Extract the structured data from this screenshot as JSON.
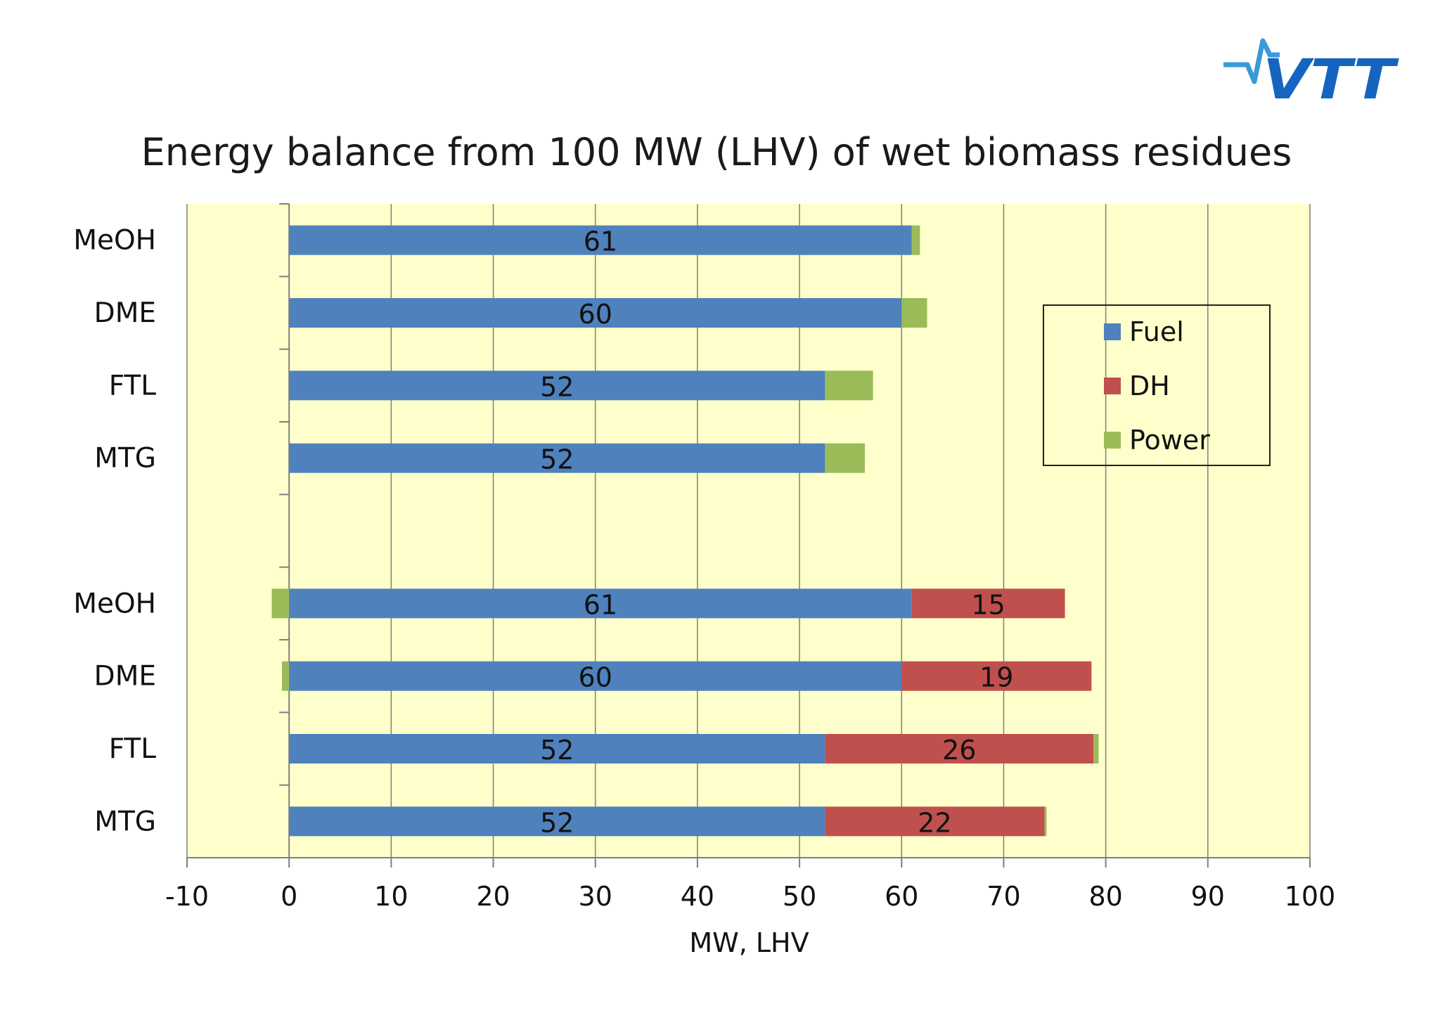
{
  "logo": {
    "text": "VTT",
    "color": "#1565c0"
  },
  "chart_data": {
    "type": "bar",
    "orientation": "horizontal",
    "stacked": true,
    "title": "Energy balance from 100 MW (LHV) of wet biomass residues",
    "xlabel": "MW, LHV",
    "ylabel": "",
    "xlim": [
      -10,
      100
    ],
    "xticks": [
      "-10",
      "0",
      "10",
      "20",
      "30",
      "40",
      "50",
      "60",
      "70",
      "80",
      "90",
      "100"
    ],
    "grid": true,
    "legend_position": "right",
    "plot_background": "#ffffcc",
    "categories": [
      "MeOH",
      "DME",
      "FTL",
      "MTG",
      "",
      "MeOH",
      "DME",
      "FTL",
      "MTG"
    ],
    "series": [
      {
        "name": "Fuel",
        "color": "#4f81bd",
        "values": [
          61,
          60,
          52.5,
          52.5,
          null,
          61,
          60,
          52.5,
          52.5
        ],
        "labels": [
          "61",
          "60",
          "52",
          "52",
          "",
          "61",
          "60",
          "52",
          "52"
        ]
      },
      {
        "name": "DH",
        "color": "#c0504d",
        "values": [
          0,
          0,
          0,
          0,
          null,
          15,
          18.6,
          26.3,
          21.5
        ],
        "labels": [
          "",
          "",
          "",
          "",
          "",
          "15",
          "19",
          "26",
          "22"
        ]
      },
      {
        "name": "Power",
        "color": "#9bbb59",
        "values": [
          0.8,
          2.5,
          4.7,
          3.9,
          null,
          -1.7,
          -0.7,
          0.5,
          0.2
        ],
        "labels": [
          "",
          "",
          "",
          "",
          "",
          "",
          "",
          "",
          ""
        ]
      }
    ]
  }
}
